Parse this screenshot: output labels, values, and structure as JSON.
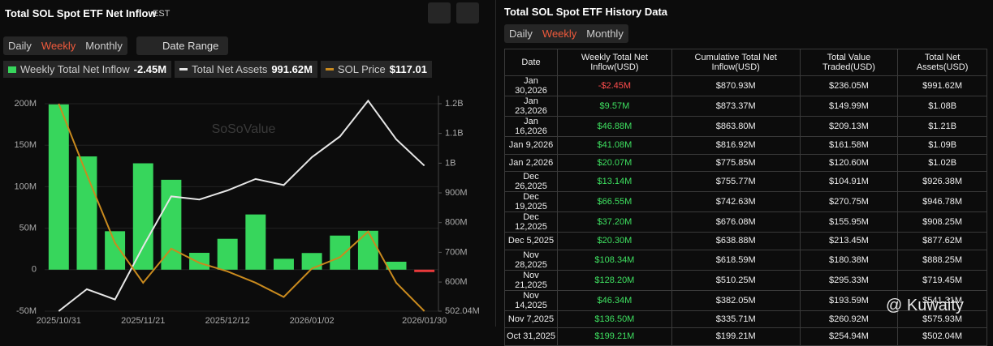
{
  "header": {
    "title": "Total SOL Spot ETF Net Inflow",
    "timezone": "EST",
    "tabs": [
      "Daily",
      "Weekly",
      "Monthly"
    ],
    "date_range": "Date Range"
  },
  "chart_data": {
    "type": "bar",
    "categories": [
      "2025/10/31",
      null,
      null,
      "2025/11/21",
      null,
      null,
      "2025/12/12",
      null,
      null,
      "2026/01/02",
      null,
      null,
      null,
      "2026/01/30"
    ],
    "series": [
      {
        "name": "Weekly Total Net Inflow",
        "legend_value": "-2.45M",
        "color": "#37d65c",
        "negative_color": "#e8393b",
        "values": [
          199.21,
          136.5,
          46.34,
          128.2,
          108.34,
          20.3,
          37.2,
          66.55,
          13.14,
          20.07,
          41.08,
          46.88,
          9.57,
          -2.45
        ]
      },
      {
        "name": "Total Net Assets",
        "legend_value": "991.62M",
        "type": "line",
        "axis": "y2",
        "color": "#e6e6e6",
        "values": [
          502.04,
          575.93,
          541.31,
          719.45,
          888.25,
          877.62,
          908.25,
          946.78,
          926.38,
          1020,
          1090,
          1210,
          1080,
          991.62
        ]
      },
      {
        "name": "SOL Price",
        "legend_value": "$117.01",
        "type": "line",
        "color": "#c98a1e",
        "values": [
          190,
          165,
          141,
          127,
          139,
          134,
          131,
          127,
          122,
          132,
          136,
          145,
          127,
          117.01
        ]
      }
    ],
    "ylim": [
      -50,
      200
    ],
    "yticks": [
      {
        "value": -50,
        "label": "-50M"
      },
      0,
      {
        "value": 50,
        "label": "50M"
      },
      {
        "value": 100,
        "label": "100M"
      },
      {
        "value": 150,
        "label": "150M"
      },
      {
        "value": 200,
        "label": "200M"
      }
    ],
    "y2lim": [
      502.04,
      1200
    ],
    "y2ticks": [
      {
        "value": 502.04,
        "label": "502.04M"
      },
      {
        "value": 600,
        "label": "600M"
      },
      {
        "value": 700,
        "label": "700M"
      },
      {
        "value": 800,
        "label": "800M"
      },
      {
        "value": 900,
        "label": "900M"
      },
      {
        "value": 1000,
        "label": "1B"
      },
      {
        "value": 1100,
        "label": "1.1B"
      },
      {
        "value": 1200,
        "label": "1.2B"
      }
    ],
    "grid": true,
    "watermark": "SoSoValue"
  },
  "table": {
    "title": "Total SOL Spot ETF History Data",
    "tabs": [
      "Daily",
      "Weekly",
      "Monthly"
    ],
    "columns": [
      "Date",
      "Weekly Total Net Inflow(USD)",
      "Cumulative Total Net Inflow(USD)",
      "Total Value Traded(USD)",
      "Total Net Assets(USD)"
    ],
    "rows": [
      [
        "Jan 30,2026",
        "-$2.45M",
        "$870.93M",
        "$236.05M",
        "$991.62M"
      ],
      [
        "Jan 23,2026",
        "$9.57M",
        "$873.37M",
        "$149.99M",
        "$1.08B"
      ],
      [
        "Jan 16,2026",
        "$46.88M",
        "$863.80M",
        "$209.13M",
        "$1.21B"
      ],
      [
        "Jan 9,2026",
        "$41.08M",
        "$816.92M",
        "$161.58M",
        "$1.09B"
      ],
      [
        "Jan 2,2026",
        "$20.07M",
        "$775.85M",
        "$120.60M",
        "$1.02B"
      ],
      [
        "Dec 26,2025",
        "$13.14M",
        "$755.77M",
        "$104.91M",
        "$926.38M"
      ],
      [
        "Dec 19,2025",
        "$66.55M",
        "$742.63M",
        "$270.75M",
        "$946.78M"
      ],
      [
        "Dec 12,2025",
        "$37.20M",
        "$676.08M",
        "$155.95M",
        "$908.25M"
      ],
      [
        "Dec 5,2025",
        "$20.30M",
        "$638.88M",
        "$213.45M",
        "$877.62M"
      ],
      [
        "Nov 28,2025",
        "$108.34M",
        "$618.59M",
        "$180.38M",
        "$888.25M"
      ],
      [
        "Nov 21,2025",
        "$128.20M",
        "$510.25M",
        "$295.33M",
        "$719.45M"
      ],
      [
        "Nov 14,2025",
        "$46.34M",
        "$382.05M",
        "$193.59M",
        "$541.31M"
      ],
      [
        "Nov 7,2025",
        "$136.50M",
        "$335.71M",
        "$260.92M",
        "$575.93M"
      ],
      [
        "Oct 31,2025",
        "$199.21M",
        "$199.21M",
        "$254.94M",
        "$502.04M"
      ]
    ]
  },
  "watermark": "@ Kuwaity"
}
